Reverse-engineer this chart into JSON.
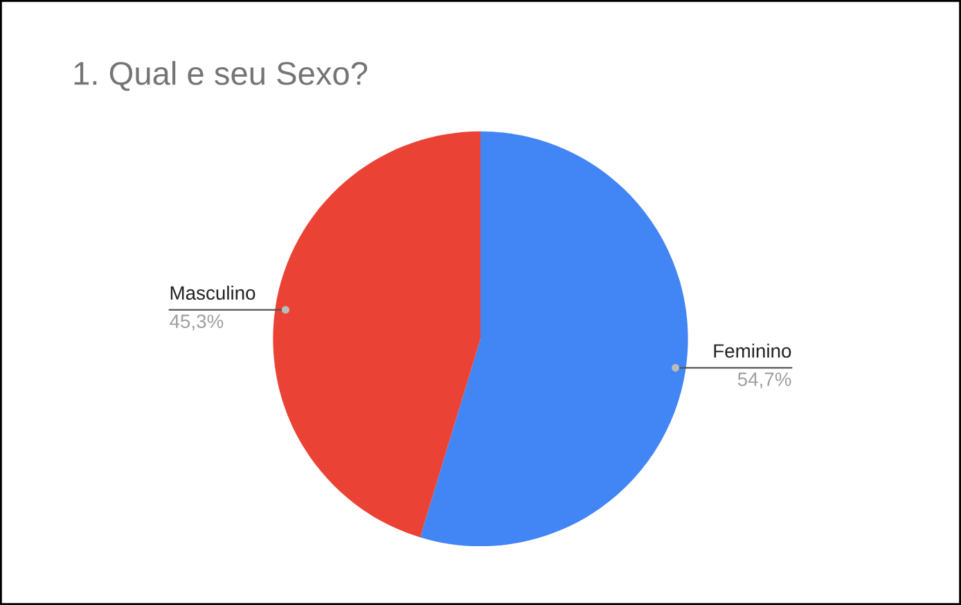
{
  "chart_data": {
    "type": "pie",
    "title": "1. Qual e seu Sexo?",
    "categories": [
      "Feminino",
      "Masculino"
    ],
    "values": [
      54.7,
      45.3
    ],
    "value_labels": [
      "54,7%",
      "45,3%"
    ],
    "colors": [
      "#4285f4",
      "#ea4335"
    ],
    "legend": false
  }
}
